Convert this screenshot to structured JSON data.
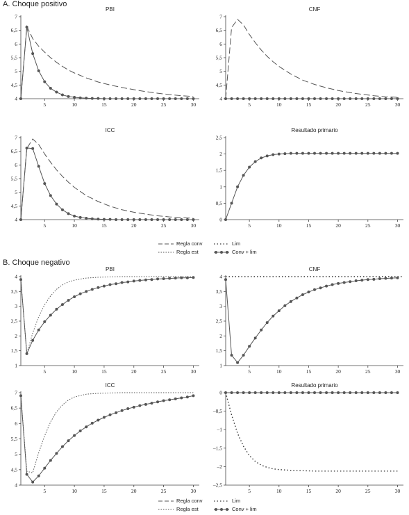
{
  "sections": [
    {
      "id": "A",
      "title": "A. Choque positivo"
    },
    {
      "id": "B",
      "title": "B. Choque negativo"
    }
  ],
  "legend": {
    "regla_conv": "Regla conv",
    "regla_est": "Regla est",
    "lim": "Lim",
    "conv_lim": "Conv + lim"
  },
  "styles": {
    "conv": {
      "color": "#555555",
      "dash": "9 4"
    },
    "est": {
      "color": "#555555",
      "dash": "1.5 2"
    },
    "lim": {
      "color": "#333333",
      "dash": "1.5 3"
    },
    "convlim": {
      "color": "#555555",
      "marker": "circle"
    }
  },
  "chart_data": [
    {
      "type": "line",
      "title": "PBI",
      "xlim": [
        1,
        31
      ],
      "ylim": [
        4,
        7
      ],
      "xticks": [
        5,
        10,
        15,
        20,
        25,
        30
      ],
      "yticks": [
        4,
        4.5,
        5,
        5.5,
        6,
        6.5,
        7
      ],
      "ytick_labels": [
        "4",
        "4,5",
        "5",
        "5,5",
        "6",
        "6,5",
        "7"
      ],
      "series": [
        {
          "name": "Regla conv",
          "style": "conv",
          "x": [
            1,
            2,
            3,
            4,
            5,
            6,
            7,
            8,
            9,
            10,
            12,
            14,
            16,
            18,
            20,
            22,
            24,
            26,
            28,
            30
          ],
          "y": [
            4,
            6.65,
            6.2,
            5.92,
            5.7,
            5.5,
            5.33,
            5.18,
            5.05,
            4.94,
            4.76,
            4.61,
            4.5,
            4.41,
            4.33,
            4.26,
            4.2,
            4.15,
            4.11,
            4.08
          ]
        },
        {
          "name": "Conv + lim",
          "style": "convlim",
          "x": [
            1,
            2,
            3,
            4,
            5,
            6,
            7,
            8,
            9,
            10,
            11,
            12,
            13,
            14,
            15,
            16,
            17,
            18,
            19,
            20,
            21,
            22,
            23,
            24,
            25,
            26,
            27,
            28,
            29,
            30
          ],
          "y": [
            4,
            6.62,
            5.65,
            5.02,
            4.62,
            4.38,
            4.24,
            4.14,
            4.08,
            4.05,
            4.03,
            4.02,
            4.01,
            4.01,
            4,
            4,
            4,
            4,
            4,
            4,
            4,
            4,
            4,
            4,
            4,
            4,
            4,
            4,
            4,
            4
          ]
        }
      ]
    },
    {
      "type": "line",
      "title": "CNF",
      "xlim": [
        1,
        31
      ],
      "ylim": [
        4,
        7
      ],
      "xticks": [
        5,
        10,
        15,
        20,
        25,
        30
      ],
      "yticks": [
        4,
        4.5,
        5,
        5.5,
        6,
        6.5,
        7
      ],
      "ytick_labels": [
        "4",
        "4,5",
        "5",
        "5,5",
        "6",
        "6,5",
        "7"
      ],
      "series": [
        {
          "name": "Regla conv",
          "style": "conv",
          "x": [
            1,
            2,
            3,
            4,
            5,
            6,
            7,
            8,
            9,
            10,
            12,
            14,
            16,
            18,
            20,
            22,
            24,
            26,
            28,
            30
          ],
          "y": [
            4,
            6.6,
            6.9,
            6.7,
            6.35,
            6.05,
            5.78,
            5.55,
            5.35,
            5.18,
            4.9,
            4.68,
            4.52,
            4.4,
            4.3,
            4.22,
            4.16,
            4.11,
            4.07,
            4.05
          ]
        },
        {
          "name": "Conv + lim",
          "style": "convlim",
          "x": [
            1,
            2,
            3,
            4,
            5,
            6,
            7,
            8,
            9,
            10,
            11,
            12,
            13,
            14,
            15,
            16,
            17,
            18,
            19,
            20,
            21,
            22,
            23,
            24,
            25,
            26,
            27,
            28,
            29,
            30
          ],
          "y": [
            4,
            4,
            4,
            4,
            4,
            4,
            4,
            4,
            4,
            4,
            4,
            4,
            4,
            4,
            4,
            4,
            4,
            4,
            4,
            4,
            4,
            4,
            4,
            4,
            4,
            4,
            4,
            4,
            4,
            4
          ]
        }
      ]
    },
    {
      "type": "line",
      "title": "ICC",
      "xlim": [
        1,
        31
      ],
      "ylim": [
        4,
        7
      ],
      "xticks": [
        5,
        10,
        15,
        20,
        25,
        30
      ],
      "yticks": [
        4,
        4.5,
        5,
        5.5,
        6,
        6.5,
        7
      ],
      "ytick_labels": [
        "4",
        "4,5",
        "5",
        "5,5",
        "6",
        "6,5",
        "7"
      ],
      "series": [
        {
          "name": "Regla conv",
          "style": "conv",
          "x": [
            1,
            2,
            3,
            4,
            5,
            6,
            7,
            8,
            9,
            10,
            12,
            14,
            16,
            18,
            20,
            22,
            24,
            26,
            28,
            30
          ],
          "y": [
            4,
            6.6,
            6.95,
            6.75,
            6.4,
            6.1,
            5.82,
            5.58,
            5.37,
            5.18,
            4.88,
            4.66,
            4.49,
            4.36,
            4.27,
            4.2,
            4.14,
            4.1,
            4.07,
            4.05
          ]
        },
        {
          "name": "Conv + lim",
          "style": "convlim",
          "x": [
            1,
            2,
            3,
            4,
            5,
            6,
            7,
            8,
            9,
            10,
            11,
            12,
            13,
            14,
            15,
            16,
            17,
            18,
            19,
            20,
            21,
            22,
            23,
            24,
            25,
            26,
            27,
            28,
            29,
            30
          ],
          "y": [
            4,
            6.62,
            6.6,
            5.95,
            5.32,
            4.88,
            4.57,
            4.36,
            4.22,
            4.13,
            4.08,
            4.05,
            4.03,
            4.02,
            4.01,
            4.01,
            4,
            4,
            4,
            4,
            4,
            4,
            4,
            4,
            4,
            4,
            4,
            4,
            4,
            4
          ]
        }
      ]
    },
    {
      "type": "line",
      "title": "Resultado primario",
      "xlim": [
        1,
        31
      ],
      "ylim": [
        0,
        2.5
      ],
      "xticks": [
        5,
        10,
        15,
        20,
        25,
        30
      ],
      "yticks": [
        0,
        0.5,
        1,
        1.5,
        2,
        2.5
      ],
      "ytick_labels": [
        "0",
        "0,5",
        "1",
        "1,5",
        "2",
        "2,5"
      ],
      "series": [
        {
          "name": "Conv + lim",
          "style": "convlim",
          "x": [
            1,
            2,
            3,
            4,
            5,
            6,
            7,
            8,
            9,
            10,
            11,
            12,
            13,
            14,
            15,
            16,
            17,
            18,
            19,
            20,
            21,
            22,
            23,
            24,
            25,
            26,
            27,
            28,
            29,
            30
          ],
          "y": [
            0,
            0.5,
            1.0,
            1.35,
            1.6,
            1.77,
            1.88,
            1.94,
            1.98,
            2,
            2.01,
            2.02,
            2.02,
            2.02,
            2.02,
            2.02,
            2.02,
            2.02,
            2.02,
            2.02,
            2.02,
            2.02,
            2.02,
            2.02,
            2.02,
            2.02,
            2.02,
            2.02,
            2.02,
            2.02
          ]
        }
      ]
    },
    {
      "type": "line",
      "title": "PBI",
      "xlim": [
        1,
        31
      ],
      "ylim": [
        1,
        4
      ],
      "xticks": [
        5,
        10,
        15,
        20,
        25,
        30
      ],
      "yticks": [
        1,
        1.5,
        2,
        2.5,
        3,
        3.5,
        4
      ],
      "ytick_labels": [
        "1",
        "1,5",
        "2",
        "2,5",
        "3",
        "3,5",
        "4"
      ],
      "series": [
        {
          "name": "Regla est",
          "style": "est",
          "x": [
            1,
            2,
            3,
            4,
            5,
            6,
            7,
            8,
            9,
            10,
            12,
            14,
            16,
            18,
            20,
            25,
            30
          ],
          "y": [
            3.9,
            1.4,
            2.1,
            2.65,
            3.05,
            3.35,
            3.57,
            3.72,
            3.82,
            3.88,
            3.95,
            3.98,
            3.99,
            4,
            4,
            4,
            4
          ]
        },
        {
          "name": "Conv + lim",
          "style": "convlim",
          "x": [
            1,
            2,
            3,
            4,
            5,
            6,
            7,
            8,
            9,
            10,
            11,
            12,
            13,
            14,
            15,
            16,
            17,
            18,
            19,
            20,
            21,
            22,
            23,
            24,
            25,
            26,
            27,
            28,
            29,
            30
          ],
          "y": [
            3.9,
            1.4,
            1.85,
            2.2,
            2.48,
            2.7,
            2.9,
            3.06,
            3.2,
            3.32,
            3.42,
            3.5,
            3.57,
            3.63,
            3.68,
            3.73,
            3.76,
            3.8,
            3.82,
            3.85,
            3.87,
            3.89,
            3.9,
            3.92,
            3.93,
            3.94,
            3.95,
            3.96,
            3.96,
            3.97
          ]
        }
      ]
    },
    {
      "type": "line",
      "title": "CNF",
      "xlim": [
        1,
        31
      ],
      "ylim": [
        1,
        4
      ],
      "xticks": [
        5,
        10,
        15,
        20,
        25,
        30
      ],
      "yticks": [
        1,
        1.5,
        2,
        2.5,
        3,
        3.5,
        4
      ],
      "ytick_labels": [
        "1",
        "1,5",
        "2",
        "2,5",
        "3",
        "3,5",
        "4"
      ],
      "series": [
        {
          "name": "Lim",
          "style": "lim",
          "x": [
            1,
            5,
            10,
            15,
            20,
            25,
            30,
            31
          ],
          "y": [
            4,
            4,
            4,
            4,
            4,
            4,
            4,
            4
          ]
        },
        {
          "name": "Conv + lim",
          "style": "convlim",
          "x": [
            1,
            2,
            3,
            4,
            5,
            6,
            7,
            8,
            9,
            10,
            11,
            12,
            13,
            14,
            15,
            16,
            17,
            18,
            19,
            20,
            21,
            22,
            23,
            24,
            25,
            26,
            27,
            28,
            29,
            30
          ],
          "y": [
            3.9,
            1.35,
            1.1,
            1.35,
            1.65,
            1.93,
            2.2,
            2.45,
            2.67,
            2.85,
            3.02,
            3.16,
            3.28,
            3.39,
            3.48,
            3.56,
            3.62,
            3.68,
            3.73,
            3.77,
            3.8,
            3.83,
            3.86,
            3.88,
            3.9,
            3.91,
            3.93,
            3.94,
            3.95,
            3.96
          ]
        }
      ]
    },
    {
      "type": "line",
      "title": "ICC",
      "xlim": [
        1,
        31
      ],
      "ylim": [
        4,
        7
      ],
      "xticks": [
        5,
        10,
        15,
        20,
        25,
        30
      ],
      "yticks": [
        4,
        4.5,
        5,
        5.5,
        6,
        6.5,
        7
      ],
      "ytick_labels": [
        "4",
        "4,5",
        "5",
        "5,5",
        "6",
        "6,5",
        "7"
      ],
      "series": [
        {
          "name": "Regla est",
          "style": "est",
          "x": [
            1,
            2,
            3,
            4,
            5,
            6,
            7,
            8,
            9,
            10,
            12,
            14,
            16,
            18,
            20,
            25,
            30
          ],
          "y": [
            6.9,
            4.45,
            4.4,
            5.05,
            5.6,
            6.05,
            6.38,
            6.6,
            6.76,
            6.86,
            6.95,
            6.98,
            6.99,
            7,
            7,
            7,
            7
          ]
        },
        {
          "name": "Conv + lim",
          "style": "convlim",
          "x": [
            1,
            2,
            3,
            4,
            5,
            6,
            7,
            8,
            9,
            10,
            11,
            12,
            13,
            14,
            15,
            16,
            17,
            18,
            19,
            20,
            21,
            22,
            23,
            24,
            25,
            26,
            27,
            28,
            29,
            30
          ],
          "y": [
            6.9,
            4.35,
            4.1,
            4.3,
            4.55,
            4.8,
            5.03,
            5.25,
            5.44,
            5.61,
            5.76,
            5.89,
            6.01,
            6.11,
            6.2,
            6.28,
            6.35,
            6.42,
            6.48,
            6.53,
            6.58,
            6.62,
            6.66,
            6.7,
            6.74,
            6.77,
            6.8,
            6.83,
            6.86,
            6.9
          ]
        }
      ]
    },
    {
      "type": "line",
      "title": "Resultado primario",
      "xlim": [
        1,
        31
      ],
      "ylim": [
        -2.5,
        0
      ],
      "xticks": [
        5,
        10,
        15,
        20,
        25,
        30
      ],
      "yticks": [
        -2.5,
        -2,
        -1.5,
        -1,
        -0.5,
        0
      ],
      "ytick_labels": [
        "–2,5",
        "–2",
        "–1,5",
        "–1",
        "–0,5",
        "0"
      ],
      "series": [
        {
          "name": "Lim",
          "style": "lim",
          "x": [
            1,
            2,
            3,
            4,
            5,
            6,
            7,
            8,
            9,
            10,
            12,
            14,
            16,
            18,
            20,
            25,
            30
          ],
          "y": [
            0,
            -0.6,
            -1.1,
            -1.45,
            -1.7,
            -1.86,
            -1.96,
            -2.02,
            -2.06,
            -2.08,
            -2.1,
            -2.11,
            -2.12,
            -2.12,
            -2.12,
            -2.12,
            -2.12
          ]
        },
        {
          "name": "Conv + lim",
          "style": "convlim",
          "x": [
            1,
            2,
            3,
            4,
            5,
            6,
            7,
            8,
            9,
            10,
            11,
            12,
            13,
            14,
            15,
            16,
            17,
            18,
            19,
            20,
            21,
            22,
            23,
            24,
            25,
            26,
            27,
            28,
            29,
            30
          ],
          "y": [
            0,
            0,
            0,
            0,
            0,
            0,
            0,
            0,
            0,
            0,
            0,
            0,
            0,
            0,
            0,
            0,
            0,
            0,
            0,
            0,
            0,
            0,
            0,
            0,
            0,
            0,
            0,
            0,
            0,
            0
          ]
        }
      ]
    }
  ]
}
